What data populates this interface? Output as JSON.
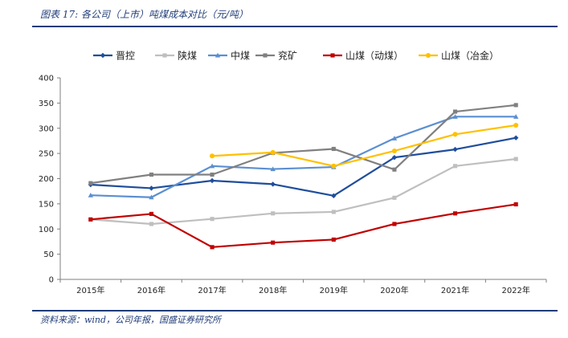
{
  "figure": {
    "title": "图表 17:  各公司（上市）吨煤成本对比（元/吨）",
    "source": "资料来源：wind，公司年报，国盛证券研究所"
  },
  "chart_data": {
    "type": "line",
    "categories": [
      "2015年",
      "2016年",
      "2017年",
      "2018年",
      "2019年",
      "2020年",
      "2021年",
      "2022年"
    ],
    "ylim": [
      0,
      400
    ],
    "yticks": [
      0,
      50,
      100,
      150,
      200,
      250,
      300,
      350,
      400
    ],
    "grid": false,
    "legend_position": "top",
    "series": [
      {
        "name": "晋控",
        "color": "#1f4e9c",
        "marker": "diamond",
        "values": [
          188,
          181,
          196,
          189,
          166,
          242,
          258,
          281
        ]
      },
      {
        "name": "陕煤",
        "color": "#bfbfbf",
        "marker": "square",
        "values": [
          119,
          110,
          120,
          131,
          134,
          162,
          225,
          239
        ]
      },
      {
        "name": "中煤",
        "color": "#5b8fd1",
        "marker": "triangle",
        "values": [
          167,
          163,
          225,
          219,
          223,
          280,
          323,
          323
        ]
      },
      {
        "name": "兖矿",
        "color": "#808080",
        "marker": "square",
        "values": [
          191,
          208,
          208,
          251,
          259,
          218,
          333,
          346
        ]
      },
      {
        "name": "山煤（动煤）",
        "color": "#c00000",
        "marker": "square",
        "values": [
          119,
          130,
          64,
          73,
          79,
          110,
          131,
          149
        ]
      },
      {
        "name": "山煤（冶金）",
        "color": "#ffc000",
        "marker": "circle",
        "values": [
          null,
          null,
          245,
          252,
          225,
          255,
          288,
          306
        ]
      }
    ]
  }
}
